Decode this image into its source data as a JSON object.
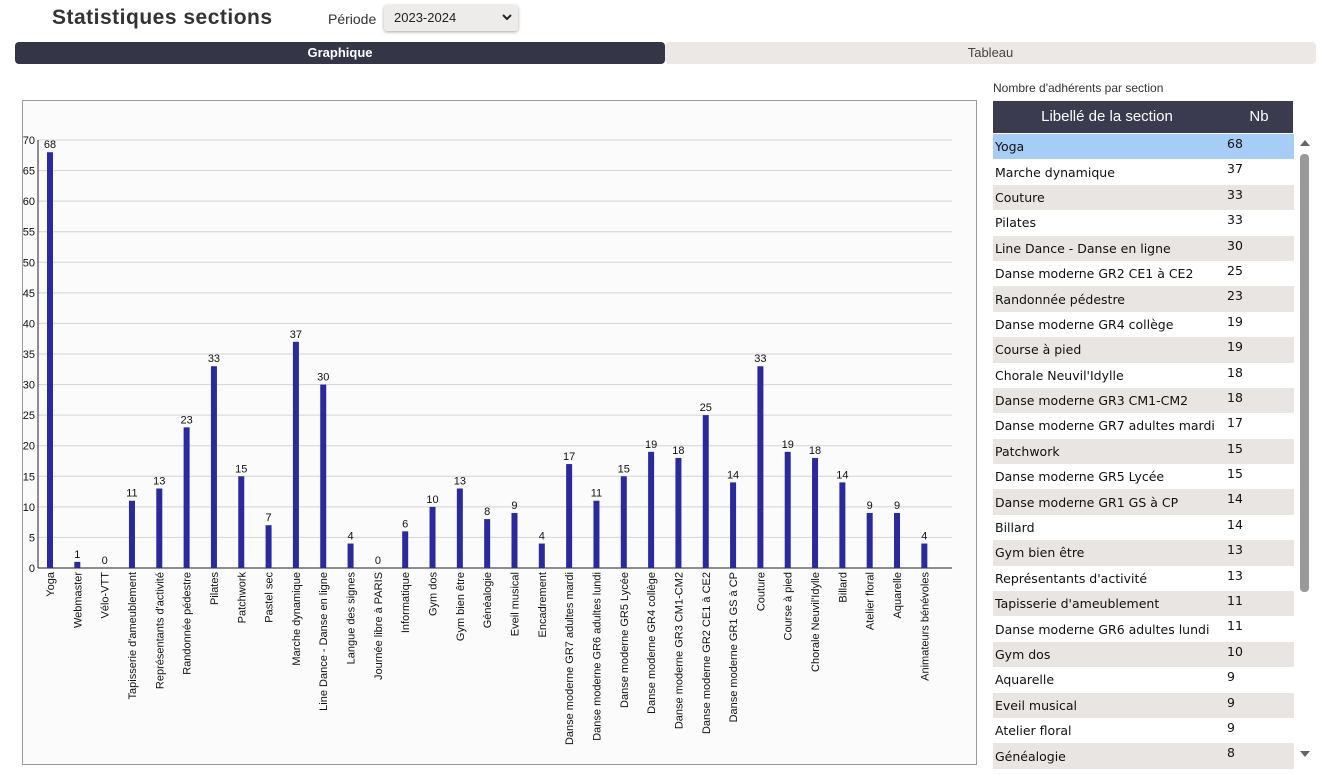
{
  "header": {
    "title": "Statistiques sections",
    "period_label": "Période",
    "period_value": "2023-2024"
  },
  "tabs": [
    "Graphique",
    "Tableau"
  ],
  "chart_data": {
    "type": "bar",
    "categories": [
      "Yoga",
      "Webmaster",
      "Vélo-VTT",
      "Tapisserie d'ameublement",
      "Représentants d'activité",
      "Randonnée pédestre",
      "Pilates",
      "Patchwork",
      "Pastel sec",
      "Marche dynamique",
      "Line Dance - Danse en ligne",
      "Langue des signes",
      "Journée libre à PARIS",
      "Informatique",
      "Gym dos",
      "Gym bien être",
      "Généalogie",
      "Eveil musical",
      "Encadrement",
      "Danse moderne GR7 adultes mardi",
      "Danse moderne GR6 adultes lundi",
      "Danse moderne GR5 Lycée",
      "Danse moderne GR4 collège",
      "Danse moderne GR3 CM1-CM2",
      "Danse moderne GR2 CE1 à CE2",
      "Danse moderne GR1 GS à CP",
      "Couture",
      "Course à pied",
      "Chorale Neuvil'Idylle",
      "Billard",
      "Atelier floral",
      "Aquarelle",
      "Animateurs bénévoles"
    ],
    "values": [
      68,
      1,
      0,
      11,
      13,
      23,
      33,
      15,
      7,
      37,
      30,
      4,
      0,
      6,
      10,
      13,
      8,
      9,
      4,
      17,
      11,
      15,
      19,
      18,
      25,
      14,
      33,
      19,
      18,
      14,
      9,
      9,
      4
    ],
    "color": "#2a2a9c",
    "ylim": [
      0,
      70
    ],
    "yticks": [
      0,
      5,
      10,
      15,
      20,
      25,
      30,
      35,
      40,
      45,
      50,
      55,
      60,
      65,
      70
    ],
    "grid": true
  },
  "table": {
    "caption": "Nombre d'adhérents par section",
    "columns": [
      "Libellé de la section",
      "Nb"
    ],
    "rows": [
      [
        "Yoga",
        68
      ],
      [
        "Marche dynamique",
        37
      ],
      [
        "Couture",
        33
      ],
      [
        "Pilates",
        33
      ],
      [
        "Line Dance - Danse en ligne",
        30
      ],
      [
        "Danse moderne GR2 CE1 à CE2",
        25
      ],
      [
        "Randonnée pédestre",
        23
      ],
      [
        "Danse moderne GR4 collège",
        19
      ],
      [
        "Course à pied",
        19
      ],
      [
        "Chorale Neuvil'Idylle",
        18
      ],
      [
        "Danse moderne GR3 CM1-CM2",
        18
      ],
      [
        "Danse moderne GR7 adultes mardi",
        17
      ],
      [
        "Patchwork",
        15
      ],
      [
        "Danse moderne GR5 Lycée",
        15
      ],
      [
        "Danse moderne GR1 GS à CP",
        14
      ],
      [
        "Billard",
        14
      ],
      [
        "Gym bien être",
        13
      ],
      [
        "Représentants d'activité",
        13
      ],
      [
        "Tapisserie d'ameublement",
        11
      ],
      [
        "Danse moderne GR6 adultes lundi",
        11
      ],
      [
        "Gym dos",
        10
      ],
      [
        "Aquarelle",
        9
      ],
      [
        "Eveil musical",
        9
      ],
      [
        "Atelier floral",
        9
      ],
      [
        "Généalogie",
        8
      ]
    ]
  }
}
